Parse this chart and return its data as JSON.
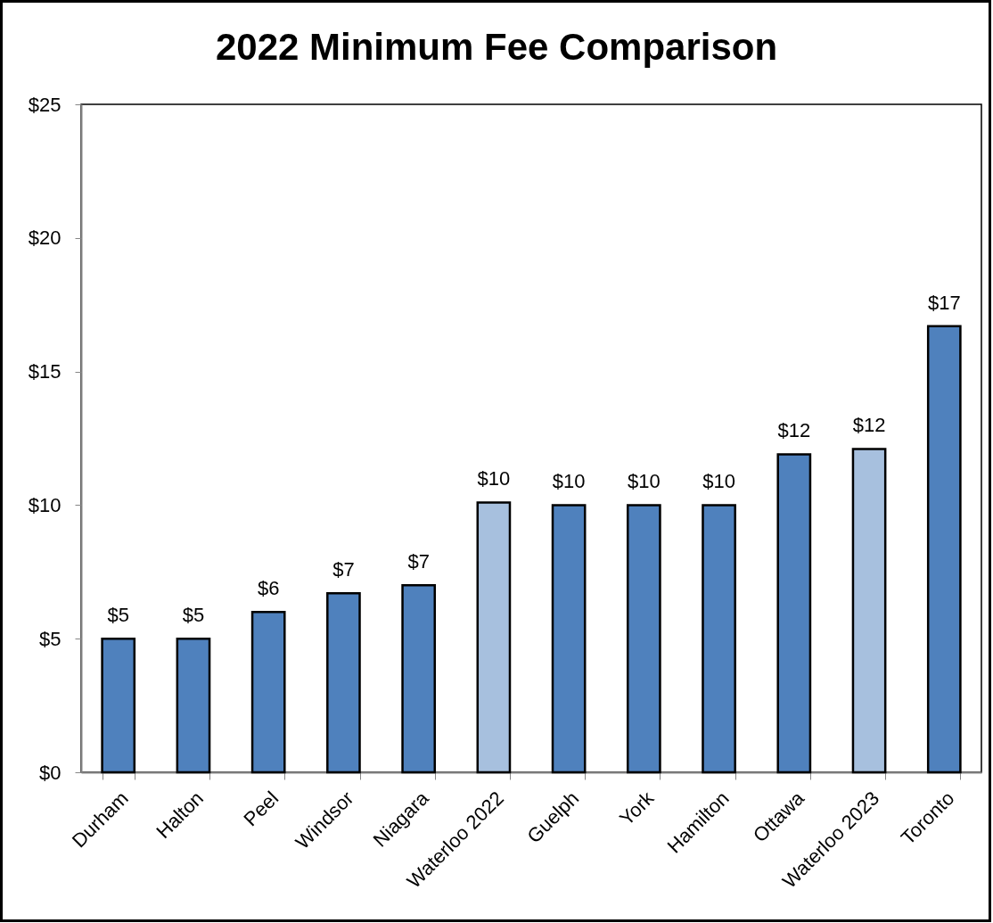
{
  "chart_data": {
    "type": "bar",
    "title": "2022 Minimum Fee Comparison",
    "categories": [
      "Durham",
      "Halton",
      "Peel",
      "Windsor",
      "Niagara",
      "Waterloo 2022",
      "Guelph",
      "York",
      "Hamilton",
      "Ottawa",
      "Waterloo 2023",
      "Toronto"
    ],
    "values": [
      5,
      5,
      6,
      6.7,
      7,
      10.1,
      10,
      10,
      10,
      11.9,
      12.1,
      16.7
    ],
    "colors": [
      "#4f81bd",
      "#4f81bd",
      "#4f81bd",
      "#4f81bd",
      "#4f81bd",
      "#a7c0de",
      "#4f81bd",
      "#4f81bd",
      "#4f81bd",
      "#4f81bd",
      "#a7c0de",
      "#4f81bd"
    ],
    "value_labels": [
      "$5",
      "$5",
      "$6",
      "$7",
      "$7",
      "$10",
      "$10",
      "$10",
      "$10",
      "$12",
      "$12",
      "$17"
    ],
    "ylim": [
      0,
      25
    ],
    "yticks": [
      {
        "value": 0,
        "label": "$0"
      },
      {
        "value": 5,
        "label": "$5"
      },
      {
        "value": 10,
        "label": "$10"
      },
      {
        "value": 15,
        "label": "$15"
      },
      {
        "value": 20,
        "label": "$20"
      },
      {
        "value": 25,
        "label": "$25"
      }
    ]
  }
}
